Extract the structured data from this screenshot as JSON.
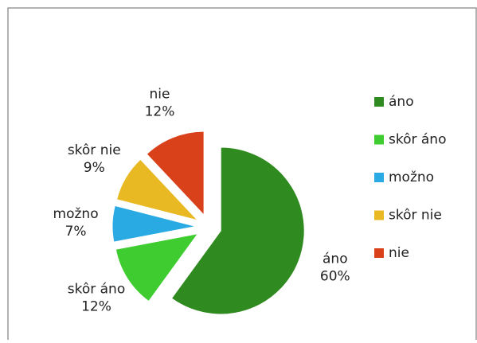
{
  "chart_data": {
    "type": "pie",
    "categories": [
      "áno",
      "skôr áno",
      "možno",
      "skôr nie",
      "nie"
    ],
    "values": [
      60,
      12,
      7,
      9,
      12
    ],
    "value_labels": [
      "60%",
      "12%",
      "7%",
      "9%",
      "12%"
    ],
    "colors": [
      "#2f8a1f",
      "#3fcc30",
      "#2aaae2",
      "#e9b923",
      "#d9411b"
    ],
    "legend": "right"
  }
}
